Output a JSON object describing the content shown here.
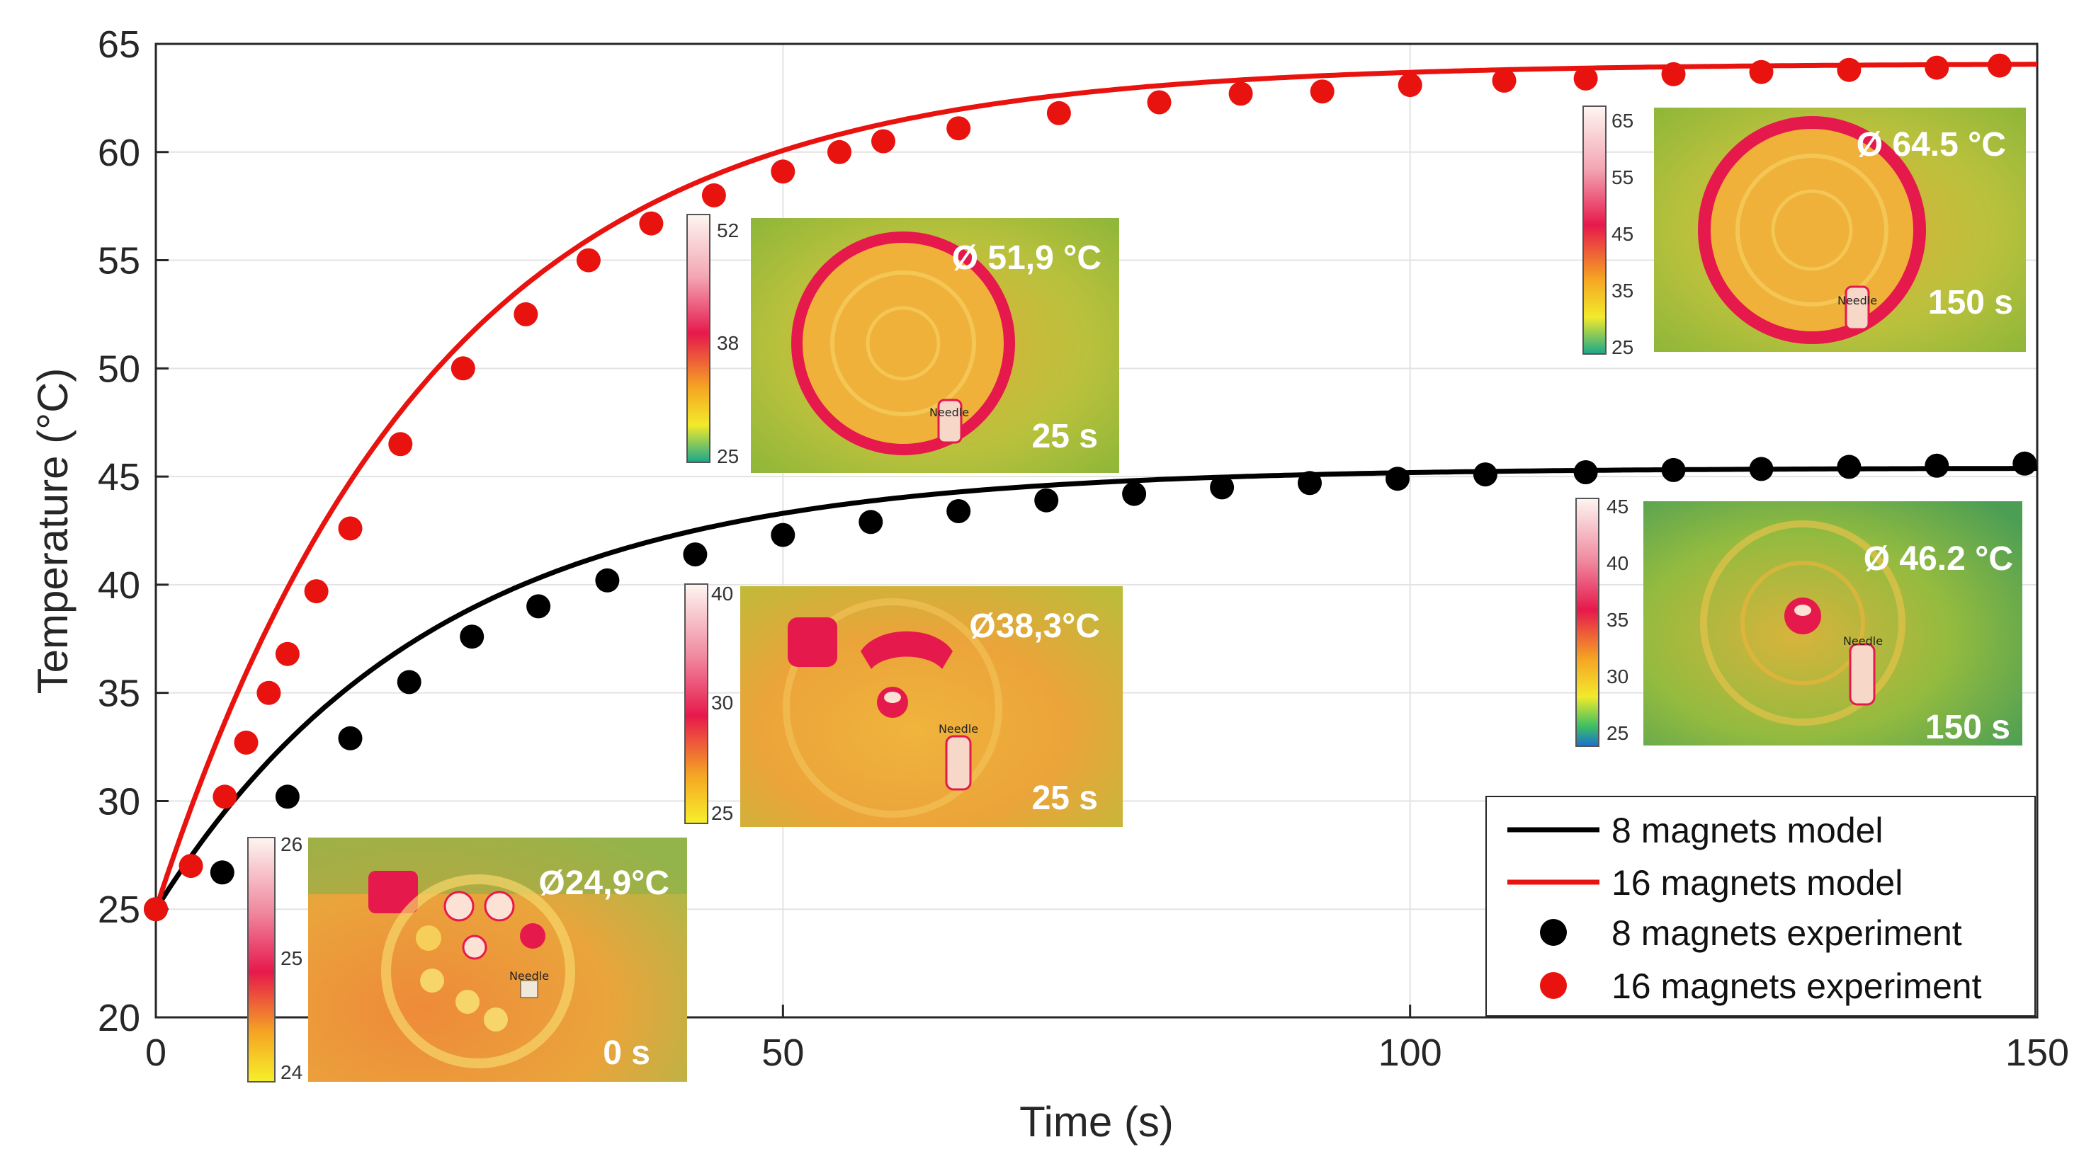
{
  "chart_data": {
    "type": "line",
    "title": "",
    "xlabel": "Time (s)",
    "ylabel": "Temperature (°C)",
    "xlim": [
      0,
      150
    ],
    "ylim": [
      20,
      65
    ],
    "xticks": [
      0,
      50,
      100,
      150
    ],
    "yticks": [
      20,
      25,
      30,
      35,
      40,
      45,
      50,
      55,
      60,
      65
    ],
    "grid": true,
    "legend_position": "bottom-right",
    "series": [
      {
        "name": "8 magnets model",
        "kind": "line",
        "color": "#000000",
        "model": {
          "T0": 25,
          "Tinf": 45.4,
          "tau": 22
        }
      },
      {
        "name": "16 magnets model",
        "kind": "line",
        "color": "#e8130f",
        "model": {
          "T0": 25,
          "Tinf": 64.1,
          "tau": 22
        }
      },
      {
        "name": "8 magnets experiment",
        "kind": "scatter",
        "color": "#000000",
        "x": [
          0,
          5.3,
          10.5,
          15.5,
          20.2,
          25.2,
          30.5,
          36,
          43,
          50,
          57,
          64,
          71,
          78,
          85,
          92,
          99,
          106,
          114,
          121,
          128,
          135,
          142,
          149
        ],
        "y": [
          25,
          26.7,
          30.2,
          32.9,
          35.5,
          37.6,
          39,
          40.2,
          41.4,
          42.3,
          42.9,
          43.4,
          43.9,
          44.2,
          44.5,
          44.7,
          44.9,
          45.1,
          45.2,
          45.3,
          45.35,
          45.45,
          45.5,
          45.6
        ]
      },
      {
        "name": "16 magnets experiment",
        "kind": "scatter",
        "color": "#e8130f",
        "x": [
          0,
          2.8,
          5.5,
          7.2,
          9,
          10.5,
          12.8,
          15.5,
          19.5,
          24.5,
          29.5,
          34.5,
          39.5,
          44.5,
          50,
          54.5,
          58,
          64,
          72,
          80,
          86.5,
          93,
          100,
          107.5,
          114,
          121,
          128,
          135,
          142,
          147
        ],
        "y": [
          25,
          27,
          30.2,
          32.7,
          35,
          36.8,
          39.7,
          42.6,
          46.5,
          50,
          52.5,
          55,
          56.7,
          58,
          59.1,
          60,
          60.5,
          61.1,
          61.8,
          62.3,
          62.7,
          62.8,
          63.1,
          63.3,
          63.4,
          63.6,
          63.7,
          63.8,
          63.9,
          64
        ]
      }
    ]
  },
  "insets": [
    {
      "scale_ticks": [
        "26",
        "25",
        "24"
      ],
      "temperature": "Ø24,9°C",
      "time": "0 s",
      "label": "Needle"
    },
    {
      "scale_ticks": [
        "40",
        "30",
        "25"
      ],
      "temperature": "Ø38,3°C",
      "time": "25 s",
      "label": "Needle"
    },
    {
      "scale_ticks": [
        "52",
        "38",
        "25"
      ],
      "temperature": "Ø 51,9 °C",
      "time": "25 s",
      "label": "Needle"
    },
    {
      "scale_ticks": [
        "45",
        "40",
        "35",
        "30",
        "25"
      ],
      "temperature": "Ø 46.2 °C",
      "time": "150 s",
      "label": "Needle"
    },
    {
      "scale_ticks": [
        "65",
        "55",
        "45",
        "35",
        "25"
      ],
      "temperature": "Ø 64.5 °C",
      "time": "150 s",
      "label": "Needle"
    }
  ],
  "colors": {
    "axis": "#262626",
    "grid": "#e3e3e3",
    "black": "#000000",
    "red": "#e8130f"
  }
}
